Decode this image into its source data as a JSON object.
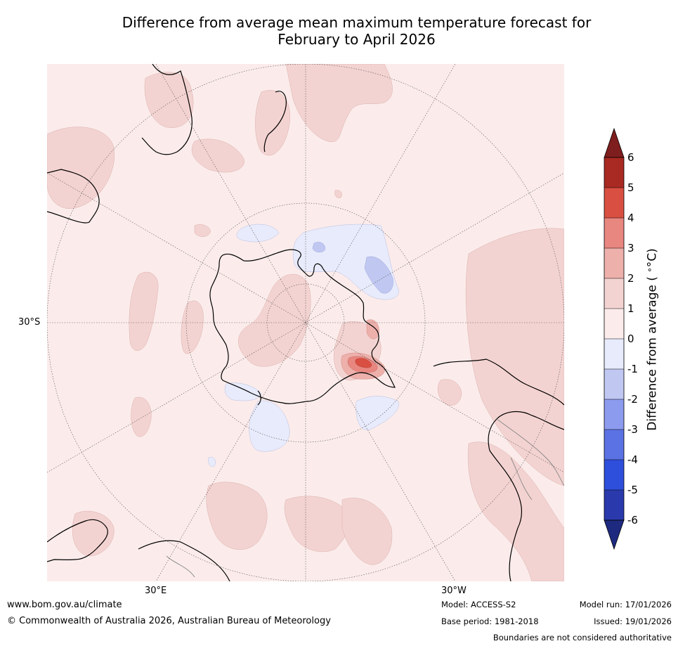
{
  "title_line1": "Difference from average mean maximum temperature forecast for",
  "title_line2": "February to April 2026",
  "map": {
    "lat_label": "30°S",
    "lon_labels": {
      "east": "30°E",
      "west": "30°W"
    },
    "projection": "south polar stereographic"
  },
  "colorbar": {
    "label": "Difference from average (°C)",
    "label_text": "Difference from average ( ",
    "label_unit": "°C)",
    "ticks": [
      "6",
      "5",
      "4",
      "3",
      "2",
      "1",
      "0",
      "-1",
      "-2",
      "-3",
      "-4",
      "-5",
      "-6"
    ],
    "colors": {
      "above_6": "#7f1e1e",
      "5_6": "#a82a22",
      "4_5": "#d94f41",
      "3_4": "#e88680",
      "2_3": "#edb0ab",
      "1_2": "#f3d3d1",
      "0_1": "#fbeceb",
      "m1_0": "#e8ebfb",
      "m2_m1": "#c0c8f2",
      "m3_m2": "#8c9bee",
      "m4_m3": "#5a72e3",
      "m5_m4": "#2e4fdc",
      "m6_m5": "#2a3aac",
      "below_m6": "#1e2a80"
    }
  },
  "footer": {
    "website": "www.bom.gov.au/climate",
    "copyright": "© Commonwealth of Australia 2026, Australian Bureau of Meteorology",
    "model": "Model: ACCESS-S2",
    "base_period": "Base period: 1981-2018",
    "model_run": "Model run: 17/01/2026",
    "issued": "Issued: 19/01/2026",
    "disclaimer": "Boundaries are not considered authoritative"
  }
}
